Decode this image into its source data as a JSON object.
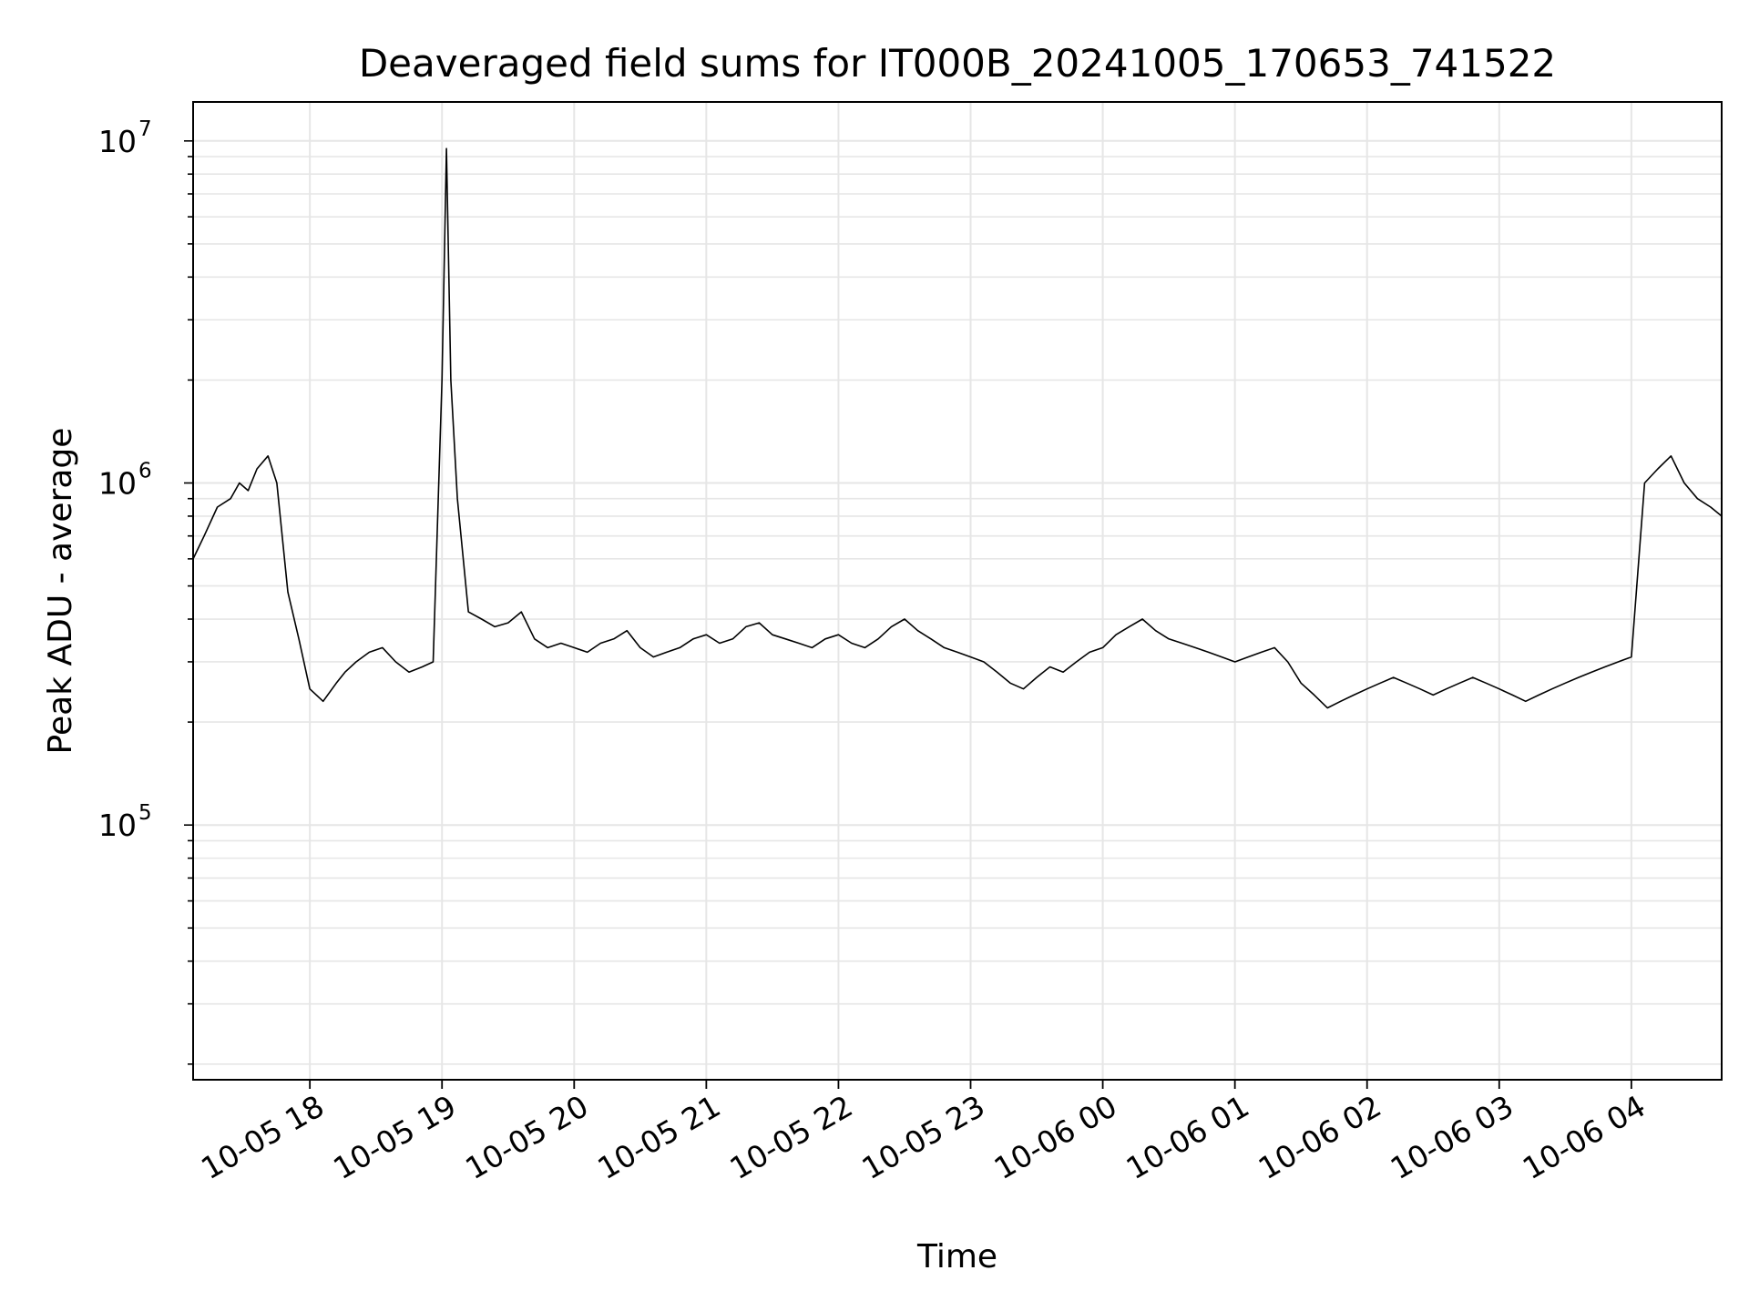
{
  "chart_data": {
    "type": "line",
    "title": "Deaveraged field sums for IT000B_20241005_170653_741522",
    "xlabel": "Time",
    "ylabel": "Peak ADU - average",
    "yscale": "log",
    "ylim": [
      18000,
      13000000
    ],
    "xlim": [
      "2024-10-05 17:07",
      "2024-10-06 04:41"
    ],
    "grid": true,
    "line_color": "#000000",
    "grid_color": "#e6e6e6",
    "x_ticks": [
      {
        "time": "2024-10-05 18:00",
        "label": "10-05 18"
      },
      {
        "time": "2024-10-05 19:00",
        "label": "10-05 19"
      },
      {
        "time": "2024-10-05 20:00",
        "label": "10-05 20"
      },
      {
        "time": "2024-10-05 21:00",
        "label": "10-05 21"
      },
      {
        "time": "2024-10-05 22:00",
        "label": "10-05 22"
      },
      {
        "time": "2024-10-05 23:00",
        "label": "10-05 23"
      },
      {
        "time": "2024-10-06 00:00",
        "label": "10-06 00"
      },
      {
        "time": "2024-10-06 01:00",
        "label": "10-06 01"
      },
      {
        "time": "2024-10-06 02:00",
        "label": "10-06 02"
      },
      {
        "time": "2024-10-06 03:00",
        "label": "10-06 03"
      },
      {
        "time": "2024-10-06 04:00",
        "label": "10-06 04"
      }
    ],
    "y_ticks": [
      {
        "value": 100000,
        "base": "10",
        "exp": "5"
      },
      {
        "value": 1000000,
        "base": "10",
        "exp": "6"
      },
      {
        "value": 10000000,
        "base": "10",
        "exp": "7"
      }
    ],
    "series": [
      {
        "x": [
          "2024-10-05 17:07",
          "2024-10-05 17:12",
          "2024-10-05 17:18",
          "2024-10-05 17:24",
          "2024-10-05 17:28",
          "2024-10-05 17:32",
          "2024-10-05 17:36",
          "2024-10-05 17:41",
          "2024-10-05 17:45",
          "2024-10-05 17:50",
          "2024-10-05 17:55",
          "2024-10-05 18:00",
          "2024-10-05 18:06",
          "2024-10-05 18:12",
          "2024-10-05 18:16",
          "2024-10-05 18:21",
          "2024-10-05 18:27",
          "2024-10-05 18:33",
          "2024-10-05 18:39",
          "2024-10-05 18:45",
          "2024-10-05 18:51",
          "2024-10-05 18:56",
          "2024-10-05 19:00",
          "2024-10-05 19:02",
          "2024-10-05 19:04",
          "2024-10-05 19:07",
          "2024-10-05 19:12",
          "2024-10-05 19:18",
          "2024-10-05 19:24",
          "2024-10-05 19:30",
          "2024-10-05 19:36",
          "2024-10-05 19:42",
          "2024-10-05 19:48",
          "2024-10-05 19:54",
          "2024-10-05 20:00",
          "2024-10-05 20:06",
          "2024-10-05 20:12",
          "2024-10-05 20:18",
          "2024-10-05 20:24",
          "2024-10-05 20:30",
          "2024-10-05 20:36",
          "2024-10-05 20:42",
          "2024-10-05 20:48",
          "2024-10-05 20:54",
          "2024-10-05 21:00",
          "2024-10-05 21:06",
          "2024-10-05 21:12",
          "2024-10-05 21:18",
          "2024-10-05 21:24",
          "2024-10-05 21:30",
          "2024-10-05 21:36",
          "2024-10-05 21:42",
          "2024-10-05 21:48",
          "2024-10-05 21:54",
          "2024-10-05 22:00",
          "2024-10-05 22:06",
          "2024-10-05 22:12",
          "2024-10-05 22:18",
          "2024-10-05 22:24",
          "2024-10-05 22:30",
          "2024-10-05 22:36",
          "2024-10-05 22:42",
          "2024-10-05 22:48",
          "2024-10-05 22:54",
          "2024-10-05 23:00",
          "2024-10-05 23:06",
          "2024-10-05 23:12",
          "2024-10-05 23:18",
          "2024-10-05 23:24",
          "2024-10-05 23:30",
          "2024-10-05 23:36",
          "2024-10-05 23:42",
          "2024-10-05 23:48",
          "2024-10-05 23:54",
          "2024-10-06 00:00",
          "2024-10-06 00:06",
          "2024-10-06 00:12",
          "2024-10-06 00:18",
          "2024-10-06 00:24",
          "2024-10-06 00:30",
          "2024-10-06 00:36",
          "2024-10-06 00:42",
          "2024-10-06 00:48",
          "2024-10-06 00:54",
          "2024-10-06 01:00",
          "2024-10-06 01:06",
          "2024-10-06 01:12",
          "2024-10-06 01:18",
          "2024-10-06 01:24",
          "2024-10-06 01:30",
          "2024-10-06 01:36",
          "2024-10-06 01:42",
          "2024-10-06 01:48",
          "2024-10-06 01:54",
          "2024-10-06 02:00",
          "2024-10-06 02:06",
          "2024-10-06 02:12",
          "2024-10-06 02:18",
          "2024-10-06 02:24",
          "2024-10-06 02:30",
          "2024-10-06 02:36",
          "2024-10-06 02:42",
          "2024-10-06 02:48",
          "2024-10-06 02:54",
          "2024-10-06 03:00",
          "2024-10-06 03:06",
          "2024-10-06 03:12",
          "2024-10-06 03:18",
          "2024-10-06 03:24",
          "2024-10-06 03:30",
          "2024-10-06 03:36",
          "2024-10-06 03:42",
          "2024-10-06 03:48",
          "2024-10-06 03:54",
          "2024-10-06 04:00",
          "2024-10-06 04:06",
          "2024-10-06 04:12",
          "2024-10-06 04:18",
          "2024-10-06 04:24",
          "2024-10-06 04:30",
          "2024-10-06 04:36",
          "2024-10-06 04:41"
        ],
        "y": [
          600000,
          700000,
          850000,
          900000,
          1000000,
          950000,
          1100000,
          1200000,
          1000000,
          480000,
          350000,
          250000,
          230000,
          260000,
          280000,
          300000,
          320000,
          330000,
          300000,
          280000,
          290000,
          300000,
          2000000,
          9500000,
          2000000,
          900000,
          420000,
          400000,
          380000,
          390000,
          420000,
          350000,
          330000,
          340000,
          330000,
          320000,
          340000,
          350000,
          370000,
          330000,
          310000,
          320000,
          330000,
          350000,
          360000,
          340000,
          350000,
          380000,
          390000,
          360000,
          350000,
          340000,
          330000,
          350000,
          360000,
          340000,
          330000,
          350000,
          380000,
          400000,
          370000,
          350000,
          330000,
          320000,
          310000,
          300000,
          280000,
          260000,
          250000,
          270000,
          290000,
          280000,
          300000,
          320000,
          330000,
          360000,
          380000,
          400000,
          370000,
          350000,
          340000,
          330000,
          320000,
          310000,
          300000,
          310000,
          320000,
          330000,
          300000,
          260000,
          240000,
          220000,
          230000,
          240000,
          250000,
          260000,
          270000,
          260000,
          250000,
          240000,
          250000,
          260000,
          270000,
          260000,
          250000,
          240000,
          230000,
          240000,
          250000,
          260000,
          270000,
          280000,
          290000,
          300000,
          310000,
          1000000,
          1100000,
          1200000,
          1000000,
          900000,
          850000,
          800000
        ]
      }
    ]
  }
}
